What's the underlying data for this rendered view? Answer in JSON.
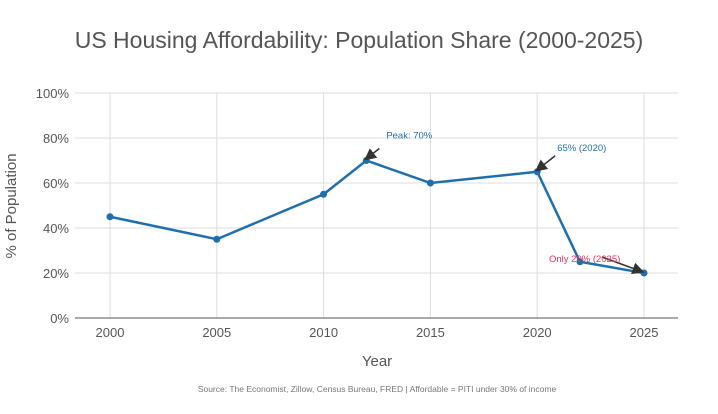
{
  "chart_data": {
    "type": "line",
    "title": "US Housing Affordability: Population Share (2000-2025)",
    "xlabel": "Year",
    "ylabel": "% of Population",
    "x": [
      2000,
      2005,
      2010,
      2012,
      2015,
      2020,
      2022,
      2025
    ],
    "values": [
      45,
      35,
      55,
      70,
      60,
      65,
      25,
      20
    ],
    "xticks": [
      "2000",
      "2005",
      "2010",
      "2015",
      "2020",
      "2025"
    ],
    "yticks": [
      "0%",
      "20%",
      "40%",
      "60%",
      "80%",
      "100%"
    ],
    "xlim": [
      1998.3,
      2026.5
    ],
    "ylim": [
      0,
      100
    ],
    "grid": true,
    "line_color": "#1f6fad",
    "annotations": [
      {
        "text": "Peak: 70%",
        "x": 2012,
        "y": 70,
        "color": "#1f6fad"
      },
      {
        "text": "65% (2020)",
        "x": 2020,
        "y": 65,
        "color": "#1f6fad"
      },
      {
        "text": "Only 20% (2025)",
        "x": 2025,
        "y": 20,
        "color": "#e8335a"
      }
    ],
    "source": "Source: The Economist, Zillow, Census Bureau, FRED | Affordable = PITI under 30% of income"
  }
}
